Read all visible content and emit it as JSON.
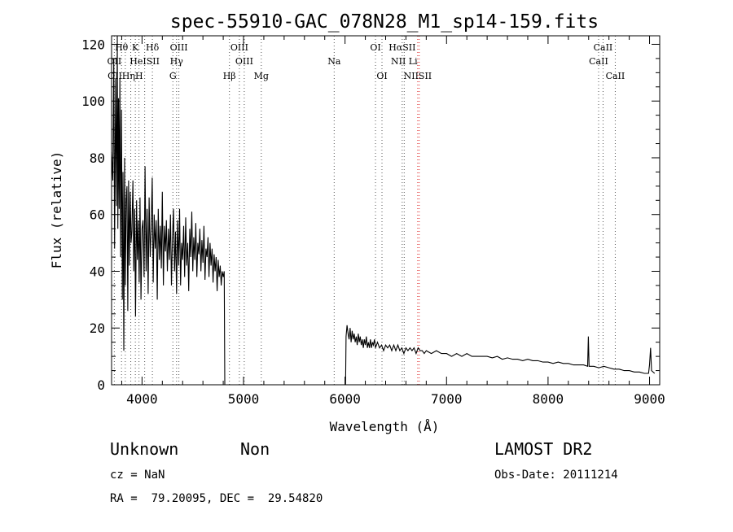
{
  "chart_data": {
    "type": "line",
    "title": "spec-55910-GAC_078N28_M1_sp14-159.fits",
    "xlabel": "Wavelength (Å)",
    "ylabel": "Flux (relative)",
    "xlim": [
      3700,
      9100
    ],
    "ylim": [
      0,
      123
    ],
    "xticks": [
      4000,
      5000,
      6000,
      7000,
      8000,
      9000
    ],
    "yticks": [
      0,
      20,
      40,
      60,
      80,
      100,
      120
    ],
    "grid": false,
    "series": [
      {
        "points": [
          [
            3700,
            82
          ],
          [
            3712,
            72
          ],
          [
            3722,
            115
          ],
          [
            3730,
            48
          ],
          [
            3740,
            108
          ],
          [
            3748,
            63
          ],
          [
            3756,
            124
          ],
          [
            3762,
            55
          ],
          [
            3768,
            101
          ],
          [
            3775,
            62
          ],
          [
            3782,
            108
          ],
          [
            3790,
            45
          ],
          [
            3798,
            97
          ],
          [
            3806,
            30
          ],
          [
            3812,
            75
          ],
          [
            3820,
            12
          ],
          [
            3828,
            80
          ],
          [
            3836,
            35
          ],
          [
            3844,
            65
          ],
          [
            3852,
            70
          ],
          [
            3860,
            26
          ],
          [
            3868,
            72
          ],
          [
            3876,
            42
          ],
          [
            3884,
            68
          ],
          [
            3892,
            50
          ],
          [
            3900,
            54
          ],
          [
            3910,
            72
          ],
          [
            3918,
            40
          ],
          [
            3928,
            62
          ],
          [
            3936,
            24
          ],
          [
            3946,
            65
          ],
          [
            3954,
            44
          ],
          [
            3962,
            58
          ],
          [
            3972,
            36
          ],
          [
            3980,
            66
          ],
          [
            3990,
            30
          ],
          [
            4000,
            55
          ],
          [
            4010,
            58
          ],
          [
            4020,
            38
          ],
          [
            4030,
            77
          ],
          [
            4040,
            40
          ],
          [
            4050,
            62
          ],
          [
            4060,
            32
          ],
          [
            4070,
            66
          ],
          [
            4080,
            45
          ],
          [
            4090,
            55
          ],
          [
            4100,
            73
          ],
          [
            4110,
            36
          ],
          [
            4120,
            60
          ],
          [
            4130,
            48
          ],
          [
            4140,
            58
          ],
          [
            4150,
            30
          ],
          [
            4160,
            62
          ],
          [
            4170,
            44
          ],
          [
            4180,
            56
          ],
          [
            4190,
            41
          ],
          [
            4200,
            68
          ],
          [
            4210,
            35
          ],
          [
            4220,
            56
          ],
          [
            4230,
            47
          ],
          [
            4240,
            58
          ],
          [
            4250,
            40
          ],
          [
            4260,
            55
          ],
          [
            4270,
            44
          ],
          [
            4280,
            60
          ],
          [
            4290,
            35
          ],
          [
            4300,
            52
          ],
          [
            4310,
            62
          ],
          [
            4320,
            40
          ],
          [
            4330,
            54
          ],
          [
            4340,
            32
          ],
          [
            4350,
            58
          ],
          [
            4360,
            42
          ],
          [
            4370,
            62
          ],
          [
            4380,
            35
          ],
          [
            4390,
            50
          ],
          [
            4400,
            44
          ],
          [
            4410,
            56
          ],
          [
            4420,
            38
          ],
          [
            4430,
            59
          ],
          [
            4440,
            42
          ],
          [
            4450,
            50
          ],
          [
            4460,
            33
          ],
          [
            4470,
            55
          ],
          [
            4480,
            45
          ],
          [
            4490,
            61
          ],
          [
            4500,
            40
          ],
          [
            4510,
            52
          ],
          [
            4520,
            44
          ],
          [
            4530,
            57
          ],
          [
            4540,
            38
          ],
          [
            4550,
            50
          ],
          [
            4560,
            46
          ],
          [
            4570,
            55
          ],
          [
            4580,
            40
          ],
          [
            4590,
            51
          ],
          [
            4600,
            43
          ],
          [
            4610,
            56
          ],
          [
            4620,
            37
          ],
          [
            4630,
            48
          ],
          [
            4640,
            45
          ],
          [
            4650,
            52
          ],
          [
            4660,
            38
          ],
          [
            4670,
            50
          ],
          [
            4680,
            42
          ],
          [
            4690,
            48
          ],
          [
            4700,
            36
          ],
          [
            4710,
            46
          ],
          [
            4720,
            40
          ],
          [
            4730,
            45
          ],
          [
            4740,
            33
          ],
          [
            4750,
            44
          ],
          [
            4760,
            38
          ],
          [
            4770,
            42
          ],
          [
            4780,
            35
          ],
          [
            4790,
            40
          ],
          [
            4800,
            38
          ],
          [
            4810,
            40
          ],
          [
            4815,
            0
          ],
          [
            4830,
            0
          ],
          [
            5000,
            0
          ],
          [
            5500,
            0
          ],
          [
            5990,
            0
          ],
          [
            6005,
            0
          ],
          [
            6010,
            17
          ],
          [
            6020,
            21
          ],
          [
            6030,
            18
          ],
          [
            6040,
            16
          ],
          [
            6050,
            20
          ],
          [
            6060,
            15
          ],
          [
            6070,
            19
          ],
          [
            6080,
            16
          ],
          [
            6090,
            18
          ],
          [
            6100,
            15
          ],
          [
            6110,
            17
          ],
          [
            6120,
            14
          ],
          [
            6130,
            18
          ],
          [
            6140,
            15
          ],
          [
            6150,
            17
          ],
          [
            6160,
            14
          ],
          [
            6170,
            16
          ],
          [
            6180,
            13
          ],
          [
            6190,
            16
          ],
          [
            6200,
            14
          ],
          [
            6210,
            17
          ],
          [
            6220,
            13
          ],
          [
            6230,
            15
          ],
          [
            6240,
            13
          ],
          [
            6250,
            16
          ],
          [
            6260,
            13
          ],
          [
            6270,
            15
          ],
          [
            6280,
            14
          ],
          [
            6290,
            16
          ],
          [
            6300,
            13
          ],
          [
            6320,
            15
          ],
          [
            6340,
            13
          ],
          [
            6360,
            14
          ],
          [
            6380,
            12
          ],
          [
            6400,
            14
          ],
          [
            6420,
            13
          ],
          [
            6440,
            14
          ],
          [
            6460,
            12
          ],
          [
            6480,
            14
          ],
          [
            6500,
            12
          ],
          [
            6520,
            14
          ],
          [
            6540,
            12
          ],
          [
            6560,
            13
          ],
          [
            6580,
            11
          ],
          [
            6600,
            13
          ],
          [
            6620,
            12
          ],
          [
            6640,
            13
          ],
          [
            6660,
            12
          ],
          [
            6680,
            13
          ],
          [
            6700,
            11
          ],
          [
            6720,
            13
          ],
          [
            6740,
            12
          ],
          [
            6760,
            12
          ],
          [
            6780,
            11
          ],
          [
            6800,
            12
          ],
          [
            6850,
            11
          ],
          [
            6900,
            12
          ],
          [
            6950,
            11
          ],
          [
            7000,
            11
          ],
          [
            7050,
            10
          ],
          [
            7100,
            11
          ],
          [
            7150,
            10
          ],
          [
            7200,
            11
          ],
          [
            7250,
            10
          ],
          [
            7300,
            10
          ],
          [
            7350,
            10
          ],
          [
            7400,
            10
          ],
          [
            7450,
            9.5
          ],
          [
            7500,
            10
          ],
          [
            7550,
            9
          ],
          [
            7600,
            9.5
          ],
          [
            7650,
            9
          ],
          [
            7700,
            9
          ],
          [
            7750,
            8.5
          ],
          [
            7800,
            9
          ],
          [
            7850,
            8.5
          ],
          [
            7900,
            8.5
          ],
          [
            7950,
            8
          ],
          [
            8000,
            8
          ],
          [
            8050,
            7.5
          ],
          [
            8100,
            8
          ],
          [
            8150,
            7.5
          ],
          [
            8200,
            7.5
          ],
          [
            8250,
            7
          ],
          [
            8300,
            7
          ],
          [
            8350,
            7
          ],
          [
            8390,
            6.5
          ],
          [
            8397,
            17
          ],
          [
            8404,
            6.5
          ],
          [
            8450,
            6.5
          ],
          [
            8500,
            6
          ],
          [
            8550,
            6.5
          ],
          [
            8600,
            6
          ],
          [
            8650,
            5.5
          ],
          [
            8700,
            5.5
          ],
          [
            8750,
            5
          ],
          [
            8800,
            5
          ],
          [
            8850,
            4.5
          ],
          [
            8900,
            4.5
          ],
          [
            8950,
            4
          ],
          [
            8990,
            4
          ],
          [
            9000,
            7
          ],
          [
            9010,
            13
          ],
          [
            9020,
            5
          ],
          [
            9050,
            4
          ]
        ]
      }
    ],
    "line_markers": [
      {
        "label": "Hθ",
        "wl": 3798,
        "row": 0
      },
      {
        "label": "K",
        "wl": 3934,
        "row": 0
      },
      {
        "label": "Hδ",
        "wl": 4102,
        "row": 0
      },
      {
        "label": "OIII",
        "wl": 4363,
        "row": 0
      },
      {
        "label": "OIII",
        "wl": 4959,
        "row": 0
      },
      {
        "label": "OI",
        "wl": 6300,
        "row": 0
      },
      {
        "label": "HαSII",
        "wl": 6563,
        "row": 0
      },
      {
        "label": "CaII",
        "wl": 8542,
        "row": 0
      },
      {
        "label": "OII",
        "wl": 3727,
        "row": 1
      },
      {
        "label": "HeISII",
        "wl": 4026,
        "row": 1
      },
      {
        "label": "Hγ",
        "wl": 4340,
        "row": 1
      },
      {
        "label": "OIII",
        "wl": 5007,
        "row": 1
      },
      {
        "label": "Na",
        "wl": 5893,
        "row": 1
      },
      {
        "label": "NII Li",
        "wl": 6583,
        "row": 1
      },
      {
        "label": "CaII",
        "wl": 8498,
        "row": 1
      },
      {
        "label": "OIIHηH",
        "wl": 3835,
        "row": 2
      },
      {
        "label": "G",
        "wl": 4304,
        "row": 2
      },
      {
        "label": "Hβ",
        "wl": 4861,
        "row": 2
      },
      {
        "label": "Mg",
        "wl": 5175,
        "row": 2
      },
      {
        "label": "OI",
        "wl": 6364,
        "row": 2
      },
      {
        "label": "NIISII",
        "wl": 6716,
        "row": 2
      },
      {
        "label": "CaII",
        "wl": 8662,
        "row": 2
      }
    ],
    "marker_lines_black": [
      3727,
      3798,
      3835,
      3889,
      3934,
      3970,
      4026,
      4102,
      4304,
      4340,
      4363,
      4861,
      4959,
      5007,
      5175,
      5893,
      6300,
      6364,
      6563,
      6583,
      8498,
      8542,
      8662
    ],
    "marker_lines_red": [
      6716,
      6731
    ]
  },
  "info": {
    "class_label": "Unknown",
    "subclass_label": "Non",
    "survey": "LAMOST DR2",
    "cz": "cz = NaN",
    "obs_date": "Obs-Date: 20111214",
    "coords": "RA =  79.20095, DEC =  29.54820"
  }
}
